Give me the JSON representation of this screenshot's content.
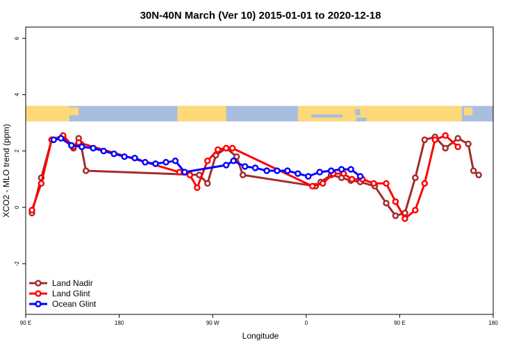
{
  "chart_data": {
    "type": "line",
    "title": "30N-40N March (Ver 10)   2015-01-01 to 2020-12-18",
    "xlabel": "Longitude",
    "ylabel": "XCO2 - MLO trend (ppm)",
    "xlim": [
      90,
      540
    ],
    "ylim": [
      -3.8,
      6.4
    ],
    "x_ticks": [
      {
        "value": 90,
        "label": "90 E"
      },
      {
        "value": 180,
        "label": "180"
      },
      {
        "value": 270,
        "label": "90 W"
      },
      {
        "value": 360,
        "label": "0"
      },
      {
        "value": 450,
        "label": "90 E"
      },
      {
        "value": 540,
        "label": "180"
      }
    ],
    "y_ticks": [
      {
        "value": -2,
        "label": "-2"
      },
      {
        "value": 0,
        "label": "0"
      },
      {
        "value": 2,
        "label": "2"
      },
      {
        "value": 4,
        "label": "4"
      },
      {
        "value": 6,
        "label": "6"
      }
    ],
    "map_band": {
      "y_top": 3.6,
      "y_bottom": 3.05,
      "ocean_color": "#a8bde0",
      "land_color": "#fdd97a"
    },
    "legend_position": "bottom-left",
    "series": [
      {
        "name": "Land Nadir",
        "color": "#a52a2a",
        "x": [
          96,
          105,
          115,
          126,
          136,
          141,
          143,
          148,
          257,
          265,
          273,
          283,
          293,
          299,
          369,
          374,
          384,
          394,
          403,
          412,
          426,
          437,
          446,
          455,
          465,
          474,
          484,
          494,
          506,
          516,
          521,
          526
        ],
        "y": [
          -0.2,
          1.05,
          2.4,
          2.5,
          2.1,
          2.45,
          2.25,
          1.3,
          1.15,
          0.85,
          1.85,
          2.1,
          1.8,
          1.15,
          0.75,
          0.9,
          1.15,
          1.05,
          0.95,
          0.9,
          0.75,
          0.15,
          -0.3,
          -0.2,
          1.05,
          2.4,
          2.5,
          2.1,
          2.45,
          2.25,
          1.3,
          1.15
        ]
      },
      {
        "name": "Land Glint",
        "color": "#ff0000",
        "x": [
          96,
          105,
          115,
          126,
          136,
          141,
          238,
          248,
          255,
          265,
          275,
          283,
          289,
          366,
          376,
          386,
          396,
          404,
          414,
          425,
          437,
          446,
          455,
          465,
          474,
          484,
          494,
          506
        ],
        "y": [
          -0.1,
          0.85,
          2.4,
          2.55,
          2.15,
          2.3,
          1.25,
          1.15,
          0.7,
          1.65,
          2.05,
          2.1,
          2.1,
          0.75,
          0.85,
          1.2,
          1.2,
          1.0,
          1.0,
          0.85,
          0.85,
          0.2,
          -0.4,
          -0.1,
          0.85,
          2.4,
          2.55,
          2.15
        ]
      },
      {
        "name": "Ocean Glint",
        "color": "#0000ff",
        "x": [
          117,
          124,
          134,
          144,
          155,
          165,
          175,
          185,
          195,
          205,
          215,
          225,
          234,
          243,
          283,
          290,
          301,
          311,
          322,
          332,
          342,
          352,
          362,
          373,
          384,
          394,
          403,
          412
        ],
        "y": [
          2.4,
          2.45,
          2.2,
          2.15,
          2.1,
          2.0,
          1.9,
          1.8,
          1.75,
          1.6,
          1.55,
          1.6,
          1.65,
          1.25,
          1.5,
          1.65,
          1.45,
          1.4,
          1.3,
          1.3,
          1.3,
          1.2,
          1.1,
          1.25,
          1.3,
          1.35,
          1.35,
          1.1
        ]
      }
    ]
  }
}
